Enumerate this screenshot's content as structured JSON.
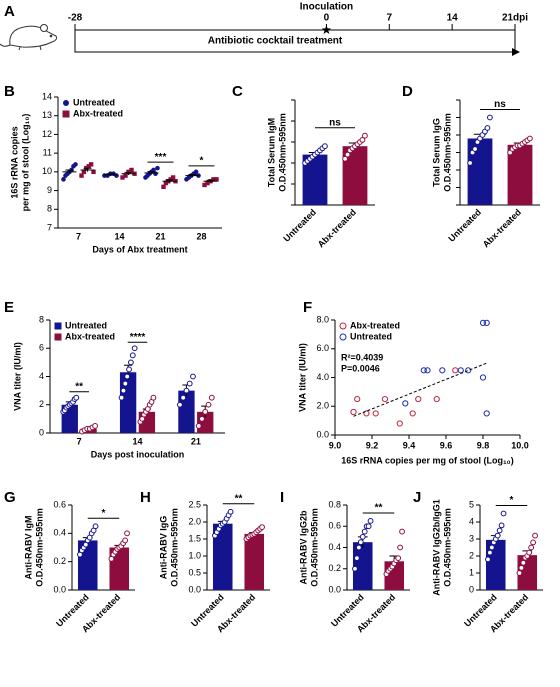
{
  "chart_data": [
    {
      "type": "timeline",
      "panel": "A",
      "xlim": [
        -28,
        21
      ],
      "xticks": [
        -28,
        0,
        7,
        14,
        {
          "value": 21,
          "label": "21dpi"
        }
      ],
      "event": "Inoculation",
      "label": "Antibiotic cocktail treatment"
    },
    {
      "type": "dot",
      "panel": "B",
      "ylabel": [
        "16S rRNA copies",
        "per mg of stool (Log₁₀)"
      ],
      "xlabel": "Days of Abx treatment",
      "categories": [
        "7",
        "14",
        "21",
        "28"
      ],
      "ylim": [
        7,
        14
      ],
      "yticks": [
        7,
        8,
        9,
        10,
        11,
        12,
        13,
        14
      ],
      "significance": [
        null,
        null,
        "***",
        "*"
      ],
      "legend": "top-left",
      "series": [
        {
          "name": "Untreated",
          "color": "#14148f",
          "marker": "circle",
          "values": [
            10.0,
            9.84,
            9.94,
            9.8
          ],
          "errors": [
            0.1,
            0.05,
            0.07,
            0.06
          ],
          "points": [
            [
              9.6,
              9.8,
              9.9,
              10.0,
              10.1,
              10.3,
              10.4
            ],
            [
              9.8,
              9.8,
              9.9,
              9.9,
              9.8
            ],
            [
              9.7,
              9.8,
              9.9,
              10.0,
              10.1,
              9.9,
              10.2
            ],
            [
              9.6,
              9.7,
              9.8,
              9.9,
              10.0,
              9.8
            ]
          ]
        },
        {
          "name": "Abx-treated",
          "color": "#8e0d3f",
          "marker": "square",
          "values": [
            10.1,
            9.9,
            9.5,
            9.5
          ],
          "errors": [
            0.09,
            0.07,
            0.07,
            0.05
          ],
          "points": [
            [
              9.8,
              10.0,
              10.2,
              10.3,
              10.4,
              10.0
            ],
            [
              9.7,
              9.8,
              10.0,
              10.1,
              9.9
            ],
            [
              9.2,
              9.4,
              9.5,
              9.6,
              9.7,
              9.5
            ],
            [
              9.3,
              9.4,
              9.5,
              9.6,
              9.6
            ]
          ]
        }
      ]
    },
    {
      "type": "bar",
      "panel": "C",
      "ylabel": [
        "Total Serum IgM",
        "O.D.450nm-595nm"
      ],
      "categories": [
        "Untreated",
        "Abx-treated"
      ],
      "colors": [
        "#14148f",
        "#8e0d3f"
      ],
      "ylim": [
        0,
        0.5
      ],
      "yticks": [
        0,
        0.1,
        0.2,
        0.3,
        0.4,
        0.5
      ],
      "tick_labels": false,
      "significance": "ns",
      "values": [
        0.24,
        0.28
      ],
      "errors": [
        0.01,
        0.015
      ],
      "points": [
        [
          0.2,
          0.21,
          0.22,
          0.23,
          0.24,
          0.25,
          0.26,
          0.27,
          0.28
        ],
        [
          0.22,
          0.24,
          0.26,
          0.27,
          0.28,
          0.29,
          0.3,
          0.31,
          0.33
        ]
      ]
    },
    {
      "type": "bar",
      "panel": "D",
      "ylabel": [
        "Total Serum IgG",
        "O.D.450nm-595nm"
      ],
      "categories": [
        "Untreated",
        "Abx-treated"
      ],
      "colors": [
        "#14148f",
        "#8e0d3f"
      ],
      "ylim": [
        0,
        3
      ],
      "yticks": [
        0,
        0.5,
        1,
        1.5,
        2,
        2.5,
        3
      ],
      "tick_labels": false,
      "significance": "ns",
      "values": [
        1.9,
        1.72
      ],
      "errors": [
        0.12,
        0.05
      ],
      "points": [
        [
          1.2,
          1.5,
          1.6,
          1.8,
          1.9,
          2.0,
          2.1,
          2.2,
          2.5
        ],
        [
          1.5,
          1.6,
          1.65,
          1.7,
          1.7,
          1.75,
          1.8,
          1.85,
          1.9
        ]
      ]
    },
    {
      "type": "bar",
      "panel": "E",
      "ylabel": [
        "VNA titer (IU/ml)"
      ],
      "xlabel": "Days post inoculation",
      "categories": [
        "7",
        "14",
        "21"
      ],
      "ylim": [
        0,
        8
      ],
      "yticks": [
        0,
        2,
        4,
        6,
        8
      ],
      "significance": [
        "**",
        "****",
        null
      ],
      "legend": "top-left",
      "series": [
        {
          "name": "Untreated",
          "color": "#14148f",
          "values": [
            2.0,
            4.3,
            3.0
          ],
          "errors": [
            0.2,
            0.5,
            0.4
          ],
          "points": [
            [
              1.5,
              1.6,
              1.8,
              1.9,
              2.0,
              2.1,
              2.2,
              2.4,
              2.5
            ],
            [
              2.5,
              3.0,
              3.5,
              4.0,
              4.5,
              5.0,
              5.5,
              6.0
            ],
            [
              2.0,
              2.5,
              3.0,
              3.5,
              4.0
            ]
          ]
        },
        {
          "name": "Abx-treated",
          "color": "#8e0d3f",
          "values": [
            0.3,
            1.5,
            1.5
          ],
          "errors": [
            0.05,
            0.2,
            0.4
          ],
          "points": [
            [
              0.1,
              0.2,
              0.3,
              0.3,
              0.4,
              0.5
            ],
            [
              0.8,
              1.0,
              1.3,
              1.5,
              1.7,
              2.0,
              2.2,
              2.5
            ],
            [
              0.5,
              1.0,
              1.5,
              2.0,
              2.5
            ]
          ]
        }
      ]
    },
    {
      "type": "scatter",
      "panel": "F",
      "ylabel": [
        "VNA titer (IU/ml)"
      ],
      "xlabel": "16S rRNA copies  per mg of stool (Log₁₀)",
      "xlim": [
        9.0,
        10.0
      ],
      "xticks": [
        {
          "value": 9.0,
          "label": "9.0"
        },
        9.2,
        9.4,
        9.6,
        9.8,
        {
          "value": 10.0,
          "label": "10.0"
        }
      ],
      "ylim": [
        0,
        8
      ],
      "yticks": [
        {
          "value": 0,
          "label": "0.0"
        },
        {
          "value": 2,
          "label": "2.0"
        },
        {
          "value": 4,
          "label": "4.0"
        },
        {
          "value": 6,
          "label": "6.0"
        },
        {
          "value": 8,
          "label": "8.0"
        }
      ],
      "annotations": [
        "R²=0.4039",
        "P=0.0046"
      ],
      "legend": "top-left",
      "trend_x": [
        9.1,
        9.82
      ],
      "trend_y": [
        1.3,
        5.0
      ],
      "series": [
        {
          "name": "Abx-treated",
          "color": "#c0283c",
          "x": [
            9.1,
            9.12,
            9.17,
            9.22,
            9.27,
            9.35,
            9.42,
            9.45,
            9.55,
            9.65
          ],
          "y": [
            1.6,
            2.5,
            1.5,
            1.5,
            2.5,
            0.8,
            1.5,
            2.5,
            2.5,
            4.5
          ]
        },
        {
          "name": "Untreated",
          "color": "#1a2fb0",
          "x": [
            9.38,
            9.48,
            9.5,
            9.58,
            9.68,
            9.72,
            9.8,
            9.82,
            9.82,
            9.8
          ],
          "y": [
            2.2,
            4.5,
            4.5,
            4.5,
            4.5,
            4.5,
            7.8,
            7.8,
            1.5,
            4.0
          ]
        }
      ]
    },
    {
      "type": "bar",
      "panel": "G",
      "ylabel": [
        "Anti-RABV IgM",
        "O.D.450nm-595nm"
      ],
      "categories": [
        "Untreated",
        "Abx-treated"
      ],
      "colors": [
        "#14148f",
        "#8e0d3f"
      ],
      "ylim": [
        0,
        0.6
      ],
      "yticks": [
        {
          "value": 0,
          "label": "0.0"
        },
        0.2,
        0.4,
        0.6
      ],
      "significance": "*",
      "values": [
        0.35,
        0.3
      ],
      "errors": [
        0.02,
        0.015
      ],
      "points": [
        [
          0.25,
          0.28,
          0.3,
          0.32,
          0.35,
          0.37,
          0.4,
          0.42,
          0.45
        ],
        [
          0.22,
          0.25,
          0.27,
          0.29,
          0.3,
          0.31,
          0.33,
          0.35,
          0.4
        ]
      ]
    },
    {
      "type": "bar",
      "panel": "H",
      "ylabel": [
        "Anti-RABV IgG",
        "O.D.450nm-595nm"
      ],
      "categories": [
        "Untreated",
        "Abx-treated"
      ],
      "colors": [
        "#14148f",
        "#8e0d3f"
      ],
      "ylim": [
        0,
        2.5
      ],
      "yticks": [
        {
          "value": 0,
          "label": "0.0"
        },
        0.5,
        {
          "value": 1,
          "label": "1.0"
        },
        1.5,
        {
          "value": 2,
          "label": "2.0"
        },
        2.5
      ],
      "significance": "**",
      "values": [
        1.95,
        1.65
      ],
      "errors": [
        0.07,
        0.04
      ],
      "points": [
        [
          1.6,
          1.7,
          1.8,
          1.9,
          1.95,
          2.0,
          2.1,
          2.2,
          2.3
        ],
        [
          1.5,
          1.55,
          1.6,
          1.62,
          1.65,
          1.7,
          1.75,
          1.8,
          1.85
        ]
      ]
    },
    {
      "type": "bar",
      "panel": "I",
      "ylabel": [
        "Anti-RABV IgG2b",
        "O.D.450nm-595nm"
      ],
      "categories": [
        "Untreated",
        "Abx-treated"
      ],
      "colors": [
        "#14148f",
        "#8e0d3f"
      ],
      "ylim": [
        0,
        0.8
      ],
      "yticks": [
        {
          "value": 0,
          "label": "0.0"
        },
        0.2,
        0.4,
        0.6,
        0.8
      ],
      "significance": "**",
      "values": [
        0.45,
        0.27
      ],
      "errors": [
        0.05,
        0.05
      ],
      "points": [
        [
          0.2,
          0.3,
          0.4,
          0.45,
          0.5,
          0.55,
          0.6,
          0.6,
          0.65
        ],
        [
          0.15,
          0.18,
          0.2,
          0.22,
          0.25,
          0.28,
          0.3,
          0.4,
          0.55
        ]
      ]
    },
    {
      "type": "bar",
      "panel": "J",
      "ylabel": [
        "Anti-RABV IgG2b/IgG1",
        "O.D.450nm-595nm"
      ],
      "categories": [
        "Untreated",
        "Abx-treated"
      ],
      "colors": [
        "#14148f",
        "#8e0d3f"
      ],
      "ylim": [
        0,
        5
      ],
      "yticks": [
        0,
        1,
        2,
        3,
        4,
        5
      ],
      "significance": "*",
      "values": [
        2.95,
        2.05
      ],
      "errors": [
        0.25,
        0.25
      ],
      "points": [
        [
          1.8,
          2.2,
          2.5,
          2.8,
          3.0,
          3.2,
          3.5,
          3.8,
          4.5
        ],
        [
          1.0,
          1.3,
          1.6,
          1.9,
          2.0,
          2.2,
          2.5,
          2.8,
          3.2
        ]
      ]
    }
  ]
}
